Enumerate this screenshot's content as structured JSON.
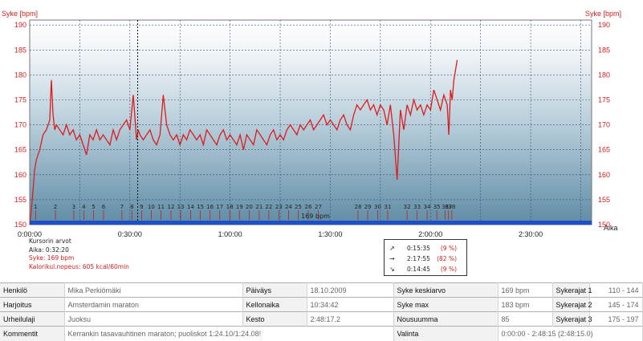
{
  "chart": {
    "y_axis_title_left": "Syke [bpm]",
    "y_axis_title_right": "Syke [bpm]",
    "x_axis_title": "Aika",
    "y_ticks": [
      "190",
      "185",
      "180",
      "175",
      "170",
      "165",
      "160",
      "155",
      "150"
    ],
    "x_ticks": [
      "0:00:00",
      "0:30:00",
      "1:00:00",
      "1:30:00",
      "2:00:00",
      "2:30:00"
    ],
    "lap_labels": [
      "1",
      "2",
      "3",
      "4",
      "5",
      "6",
      "7",
      "8",
      "9",
      "10",
      "11",
      "12",
      "13",
      "14",
      "15",
      "16",
      "17",
      "18",
      "19",
      "20",
      "21",
      "22",
      "23",
      "24",
      "25",
      "26",
      "27",
      "28",
      "29",
      "30",
      "31",
      "32",
      "33",
      "34",
      "35",
      "36",
      "37",
      "38"
    ],
    "cursor_value_label": "169 bpm",
    "colors": {
      "line": "#dc1c1c",
      "axis_text": "#d42020",
      "range_bar": "#1c4fc8",
      "bg_top": "#ffffff",
      "bg_bottom": "#5f8ca5"
    }
  },
  "chart_data": {
    "type": "line",
    "title": "",
    "xlabel": "Aika",
    "ylabel": "Syke [bpm]",
    "xlim_minutes": [
      0,
      168.25
    ],
    "ylim": [
      150,
      191
    ],
    "grid": true,
    "cursor_minutes": 32.33,
    "lap_marks_minutes": [
      1.8,
      7.7,
      13.2,
      16.2,
      19.1,
      22.1,
      27.6,
      30.6,
      33.5,
      36.4,
      39.3,
      42.3,
      45.2,
      48.2,
      51.1,
      54.0,
      56.9,
      59.9,
      62.8,
      65.7,
      68.7,
      71.6,
      74.6,
      77.5,
      80.4,
      83.4,
      86.4,
      98.3,
      101.2,
      104.2,
      107.2,
      113.0,
      116.0,
      119.0,
      121.9,
      124.4,
      125.4,
      126.4
    ],
    "series": [
      {
        "x_minutes": [
          0,
          0.5,
          1,
          1.5,
          2,
          3,
          4,
          5,
          6,
          6.5,
          7,
          7.5,
          8,
          9,
          10,
          11,
          12,
          13,
          14,
          15,
          16,
          17,
          18,
          19,
          20,
          21,
          22,
          23,
          24,
          25,
          26,
          27,
          28,
          29,
          30,
          31,
          32,
          32.5,
          33,
          34,
          35,
          36,
          37,
          38,
          39,
          40,
          41,
          42,
          43,
          44,
          45,
          46,
          47,
          48,
          49,
          50,
          51,
          52,
          53,
          54,
          55,
          56,
          57,
          58,
          59,
          60,
          61,
          62,
          63,
          64,
          65,
          66,
          67,
          68,
          69,
          70,
          71,
          72,
          73,
          74,
          75,
          76,
          77,
          78,
          79,
          80,
          81,
          82,
          83,
          84,
          85,
          86,
          87,
          88,
          89,
          90,
          91,
          92,
          93,
          94,
          95,
          96,
          97,
          98,
          99,
          100,
          101,
          102,
          103,
          104,
          105,
          106,
          107,
          108,
          109,
          110,
          111,
          112,
          113,
          114,
          115,
          116,
          117,
          118,
          119,
          120,
          121,
          122,
          123,
          124,
          125,
          125.5,
          126,
          126.5,
          127,
          127.5,
          128
        ],
        "values": [
          150,
          153,
          157,
          161,
          163,
          165,
          168,
          169,
          171,
          179,
          172,
          169,
          170,
          169,
          168,
          170,
          168,
          169,
          167,
          168,
          166,
          164,
          168,
          167,
          169,
          167,
          168,
          167,
          166,
          169,
          167,
          169,
          170,
          171,
          169,
          176,
          167,
          169,
          168,
          167,
          168,
          169,
          167,
          166,
          168,
          176,
          170,
          168,
          167,
          168,
          166,
          168,
          167,
          169,
          168,
          167,
          168,
          166,
          169,
          168,
          167,
          166,
          168,
          169,
          167,
          168,
          167,
          166,
          168,
          165,
          168,
          167,
          166,
          169,
          168,
          167,
          166,
          168,
          169,
          167,
          168,
          167,
          169,
          170,
          169,
          168,
          170,
          169,
          170,
          171,
          169,
          170,
          171,
          172,
          170,
          171,
          170,
          169,
          171,
          172,
          170,
          169,
          172,
          174,
          173,
          174,
          175,
          173,
          174,
          172,
          174,
          173,
          170,
          174,
          168,
          159,
          173,
          169,
          174,
          172,
          175,
          173,
          174,
          172,
          174,
          173,
          177,
          175,
          173,
          176,
          174,
          168,
          177,
          175,
          179,
          181,
          183
        ]
      }
    ]
  },
  "cursor_info": {
    "title": "Kursorin arvot",
    "time": "Aika: 0:32:20",
    "hr": "Syke: 169 bpm",
    "calories": "Kalorikul.nopeus: 605 kcal/60min"
  },
  "direction_box": [
    {
      "icon": "↗",
      "time": "0:15:35",
      "pct": "(9 %)"
    },
    {
      "icon": "→",
      "time": "2:17:55",
      "pct": "(82 %)"
    },
    {
      "icon": "↘",
      "time": "0:14:45",
      "pct": "(9 %)"
    }
  ],
  "summary": {
    "henkilo_label": "Henkilö",
    "henkilo": "Mika Perkiömäki",
    "paivays_label": "Päiväys",
    "paivays": "18.10.2009",
    "syke_ka_label": "Syke keskiarvo",
    "syke_ka": "169 bpm",
    "sykerajat1_label": "Sykerajat 1",
    "sykerajat1": "110 - 144",
    "harjoitus_label": "Harjoitus",
    "harjoitus": "Amsterdamin maraton",
    "kellonaika_label": "Kellonaika",
    "kellonaika": "10:34:42",
    "syke_max_label": "Syke max",
    "syke_max": "183 bpm",
    "sykerajat2_label": "Sykerajat 2",
    "sykerajat2": "145 - 174",
    "urheilulaji_label": "Urheilulaji",
    "urheilulaji": "Juoksu",
    "kesto_label": "Kesto",
    "kesto": "2:48:17.2",
    "nousu_label": "Nousuumma",
    "nousu": "85",
    "sykerajat3_label": "Sykerajat 3",
    "sykerajat3": "175 - 197",
    "kommentit_label": "Kommentit",
    "kommentit": "Kerrankin tasavauhtinen maraton; puoliskot 1:24.10/1:24.08!",
    "valinta_label": "Valinta",
    "valinta": "0:00:00 - 2:48:15 (2:48:15.0)"
  }
}
